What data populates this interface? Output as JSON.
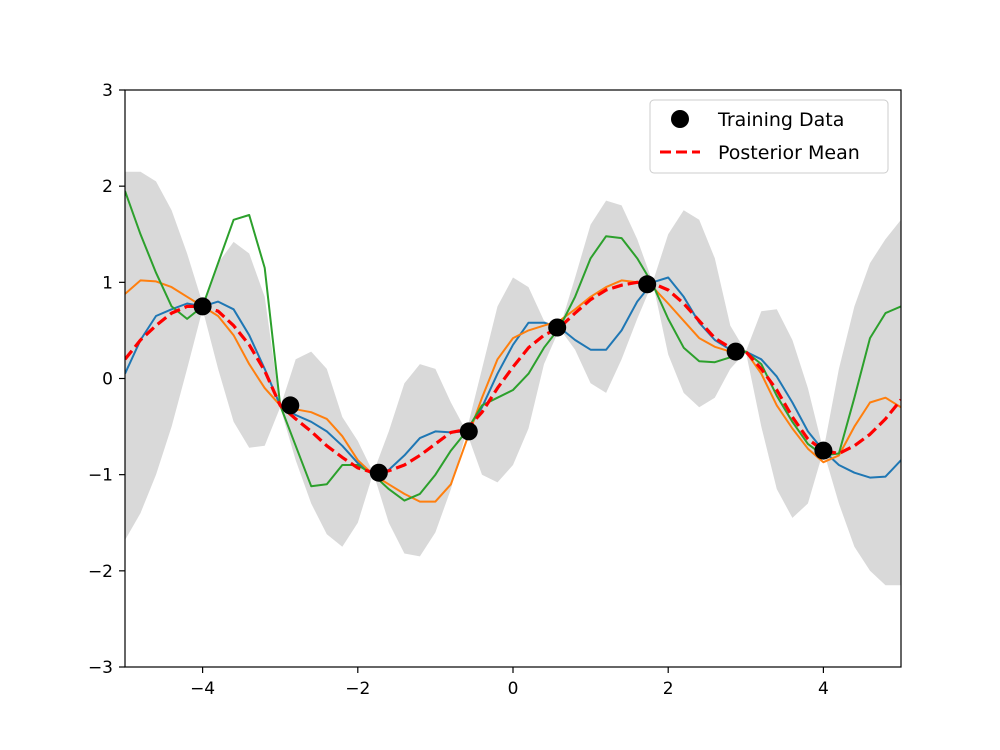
{
  "chart_data": {
    "type": "line",
    "title": "",
    "xlabel": "",
    "ylabel": "",
    "xlim": [
      -5,
      5
    ],
    "ylim": [
      -3,
      3
    ],
    "x_ticks": [
      -4,
      -2,
      0,
      2,
      4
    ],
    "y_ticks": [
      -3,
      -2,
      -1,
      0,
      1,
      2,
      3
    ],
    "x_tick_labels": [
      "−4",
      "−2",
      "0",
      "2",
      "4"
    ],
    "y_tick_labels": [
      "−3",
      "−2",
      "−1",
      "0",
      "1",
      "2",
      "3"
    ],
    "grid": false,
    "legend_position": "top-right",
    "legend": [
      {
        "label": "Training Data",
        "marker": "circle",
        "color": "#000000"
      },
      {
        "label": "Posterior Mean",
        "marker": "dashed-line",
        "color": "#ff0000"
      }
    ],
    "confidence_band": {
      "color": "#d9d9d9",
      "x": [
        -5,
        -4.8,
        -4.6,
        -4.4,
        -4.2,
        -4,
        -3.8,
        -3.6,
        -3.4,
        -3.2,
        -3,
        -2.8,
        -2.6,
        -2.4,
        -2.2,
        -2,
        -1.8,
        -1.6,
        -1.4,
        -1.2,
        -1,
        -0.8,
        -0.6,
        -0.4,
        -0.2,
        0,
        0.2,
        0.4,
        0.6,
        0.8,
        1,
        1.2,
        1.4,
        1.6,
        1.8,
        2,
        2.2,
        2.4,
        2.6,
        2.8,
        3,
        3.2,
        3.4,
        3.6,
        3.8,
        4,
        4.2,
        4.4,
        4.6,
        4.8,
        5
      ],
      "upper": [
        2.15,
        2.15,
        2.05,
        1.75,
        1.3,
        0.78,
        1.2,
        1.42,
        1.3,
        0.85,
        -0.3,
        0.2,
        0.28,
        0.1,
        -0.4,
        -0.65,
        -0.98,
        -0.55,
        -0.05,
        0.15,
        0.1,
        -0.25,
        -0.55,
        0.1,
        0.75,
        1.05,
        0.95,
        0.6,
        0.52,
        1.05,
        1.6,
        1.85,
        1.8,
        1.45,
        1.0,
        1.5,
        1.75,
        1.65,
        1.25,
        0.55,
        0.28,
        0.7,
        0.72,
        0.4,
        -0.1,
        -0.75,
        0.1,
        0.75,
        1.2,
        1.45,
        1.65
      ],
      "lower": [
        -1.68,
        -1.4,
        -1.0,
        -0.5,
        0.1,
        0.72,
        0.1,
        -0.45,
        -0.72,
        -0.7,
        -0.3,
        -0.85,
        -1.3,
        -1.62,
        -1.75,
        -1.5,
        -0.98,
        -1.5,
        -1.82,
        -1.85,
        -1.6,
        -1.15,
        -0.55,
        -1.0,
        -1.08,
        -0.9,
        -0.52,
        0.15,
        0.52,
        0.3,
        -0.05,
        -0.15,
        0.2,
        0.62,
        1.0,
        0.25,
        -0.15,
        -0.3,
        -0.2,
        0.1,
        0.28,
        -0.5,
        -1.15,
        -1.45,
        -1.3,
        -0.75,
        -1.3,
        -1.75,
        -2.0,
        -2.15,
        -2.15
      ]
    },
    "series": [
      {
        "color": "#1f77b4",
        "x": [
          -5,
          -4.8,
          -4.6,
          -4.4,
          -4.2,
          -4,
          -3.8,
          -3.6,
          -3.4,
          -3.2,
          -3,
          -2.8,
          -2.6,
          -2.4,
          -2.2,
          -2,
          -1.8,
          -1.6,
          -1.4,
          -1.2,
          -1,
          -0.8,
          -0.6,
          -0.4,
          -0.2,
          0,
          0.2,
          0.4,
          0.6,
          0.8,
          1,
          1.2,
          1.4,
          1.6,
          1.8,
          2,
          2.2,
          2.4,
          2.6,
          2.8,
          3,
          3.2,
          3.4,
          3.6,
          3.8,
          4,
          4.2,
          4.4,
          4.6,
          4.8,
          5
        ],
        "y": [
          0.05,
          0.4,
          0.65,
          0.72,
          0.78,
          0.75,
          0.8,
          0.72,
          0.45,
          0.1,
          -0.28,
          -0.38,
          -0.45,
          -0.55,
          -0.7,
          -0.88,
          -1.0,
          -0.95,
          -0.8,
          -0.62,
          -0.55,
          -0.56,
          -0.55,
          -0.3,
          0.05,
          0.35,
          0.58,
          0.58,
          0.53,
          0.4,
          0.3,
          0.3,
          0.5,
          0.8,
          1.0,
          1.05,
          0.85,
          0.58,
          0.4,
          0.3,
          0.28,
          0.2,
          0.02,
          -0.25,
          -0.55,
          -0.75,
          -0.9,
          -0.98,
          -1.03,
          -1.02,
          -0.85
        ]
      },
      {
        "color": "#ff7f0e",
        "x": [
          -5,
          -4.8,
          -4.6,
          -4.4,
          -4.2,
          -4,
          -3.8,
          -3.6,
          -3.4,
          -3.2,
          -3,
          -2.8,
          -2.6,
          -2.4,
          -2.2,
          -2,
          -1.8,
          -1.6,
          -1.4,
          -1.2,
          -1,
          -0.8,
          -0.6,
          -0.4,
          -0.2,
          0,
          0.2,
          0.4,
          0.6,
          0.8,
          1,
          1.2,
          1.4,
          1.6,
          1.8,
          2,
          2.2,
          2.4,
          2.6,
          2.8,
          3,
          3.2,
          3.4,
          3.6,
          3.8,
          4,
          4.2,
          4.4,
          4.6,
          4.8,
          5
        ],
        "y": [
          0.88,
          1.02,
          1.01,
          0.95,
          0.85,
          0.75,
          0.65,
          0.45,
          0.15,
          -0.1,
          -0.28,
          -0.32,
          -0.35,
          -0.42,
          -0.6,
          -0.85,
          -1.0,
          -1.1,
          -1.2,
          -1.28,
          -1.28,
          -1.1,
          -0.65,
          -0.2,
          0.2,
          0.42,
          0.5,
          0.55,
          0.6,
          0.72,
          0.85,
          0.95,
          1.02,
          1.0,
          0.95,
          0.78,
          0.6,
          0.42,
          0.33,
          0.28,
          0.28,
          0.05,
          -0.28,
          -0.52,
          -0.73,
          -0.87,
          -0.8,
          -0.5,
          -0.25,
          -0.2,
          -0.3
        ]
      },
      {
        "color": "#2ca02c",
        "x": [
          -5,
          -4.8,
          -4.6,
          -4.4,
          -4.2,
          -4,
          -3.8,
          -3.6,
          -3.4,
          -3.2,
          -3,
          -2.8,
          -2.6,
          -2.4,
          -2.2,
          -2,
          -1.8,
          -1.6,
          -1.4,
          -1.2,
          -1,
          -0.8,
          -0.6,
          -0.4,
          -0.2,
          0,
          0.2,
          0.4,
          0.6,
          0.8,
          1,
          1.2,
          1.4,
          1.6,
          1.8,
          2,
          2.2,
          2.4,
          2.6,
          2.8,
          3,
          3.2,
          3.4,
          3.6,
          3.8,
          4,
          4.2,
          4.4,
          4.6,
          4.8,
          5
        ],
        "y": [
          1.95,
          1.5,
          1.1,
          0.75,
          0.62,
          0.75,
          1.2,
          1.65,
          1.7,
          1.15,
          -0.28,
          -0.7,
          -1.12,
          -1.1,
          -0.9,
          -0.9,
          -1.0,
          -1.15,
          -1.27,
          -1.2,
          -1.0,
          -0.75,
          -0.55,
          -0.28,
          -0.2,
          -0.12,
          0.05,
          0.32,
          0.53,
          0.85,
          1.25,
          1.48,
          1.46,
          1.25,
          0.98,
          0.62,
          0.32,
          0.18,
          0.17,
          0.22,
          0.28,
          0.15,
          -0.18,
          -0.45,
          -0.68,
          -0.8,
          -0.78,
          -0.2,
          0.42,
          0.68,
          0.75
        ]
      },
      {
        "name": "Posterior Mean",
        "color": "#ff0000",
        "dashed": true,
        "x": [
          -5,
          -4.8,
          -4.6,
          -4.4,
          -4.2,
          -4,
          -3.8,
          -3.6,
          -3.4,
          -3.2,
          -3,
          -2.8,
          -2.6,
          -2.4,
          -2.2,
          -2,
          -1.8,
          -1.6,
          -1.4,
          -1.2,
          -1,
          -0.8,
          -0.6,
          -0.4,
          -0.2,
          0,
          0.2,
          0.4,
          0.6,
          0.8,
          1,
          1.2,
          1.4,
          1.6,
          1.8,
          2,
          2.2,
          2.4,
          2.6,
          2.8,
          3,
          3.2,
          3.4,
          3.6,
          3.8,
          4,
          4.2,
          4.4,
          4.6,
          4.8,
          5
        ],
        "y": [
          0.2,
          0.4,
          0.55,
          0.68,
          0.75,
          0.75,
          0.7,
          0.55,
          0.35,
          0.08,
          -0.28,
          -0.42,
          -0.55,
          -0.7,
          -0.82,
          -0.93,
          -0.98,
          -0.96,
          -0.9,
          -0.8,
          -0.68,
          -0.56,
          -0.53,
          -0.35,
          -0.1,
          0.12,
          0.32,
          0.45,
          0.53,
          0.68,
          0.82,
          0.92,
          0.97,
          1.0,
          0.99,
          0.92,
          0.78,
          0.6,
          0.42,
          0.32,
          0.28,
          0.1,
          -0.12,
          -0.4,
          -0.63,
          -0.75,
          -0.78,
          -0.7,
          -0.58,
          -0.42,
          -0.22
        ]
      }
    ],
    "training_points": {
      "name": "Training Data",
      "color": "#000000",
      "x": [
        -4.0,
        -2.87,
        -1.73,
        -0.57,
        0.57,
        1.73,
        2.87,
        4.0
      ],
      "y": [
        0.75,
        -0.28,
        -0.98,
        -0.55,
        0.53,
        0.98,
        0.28,
        -0.75
      ]
    }
  }
}
